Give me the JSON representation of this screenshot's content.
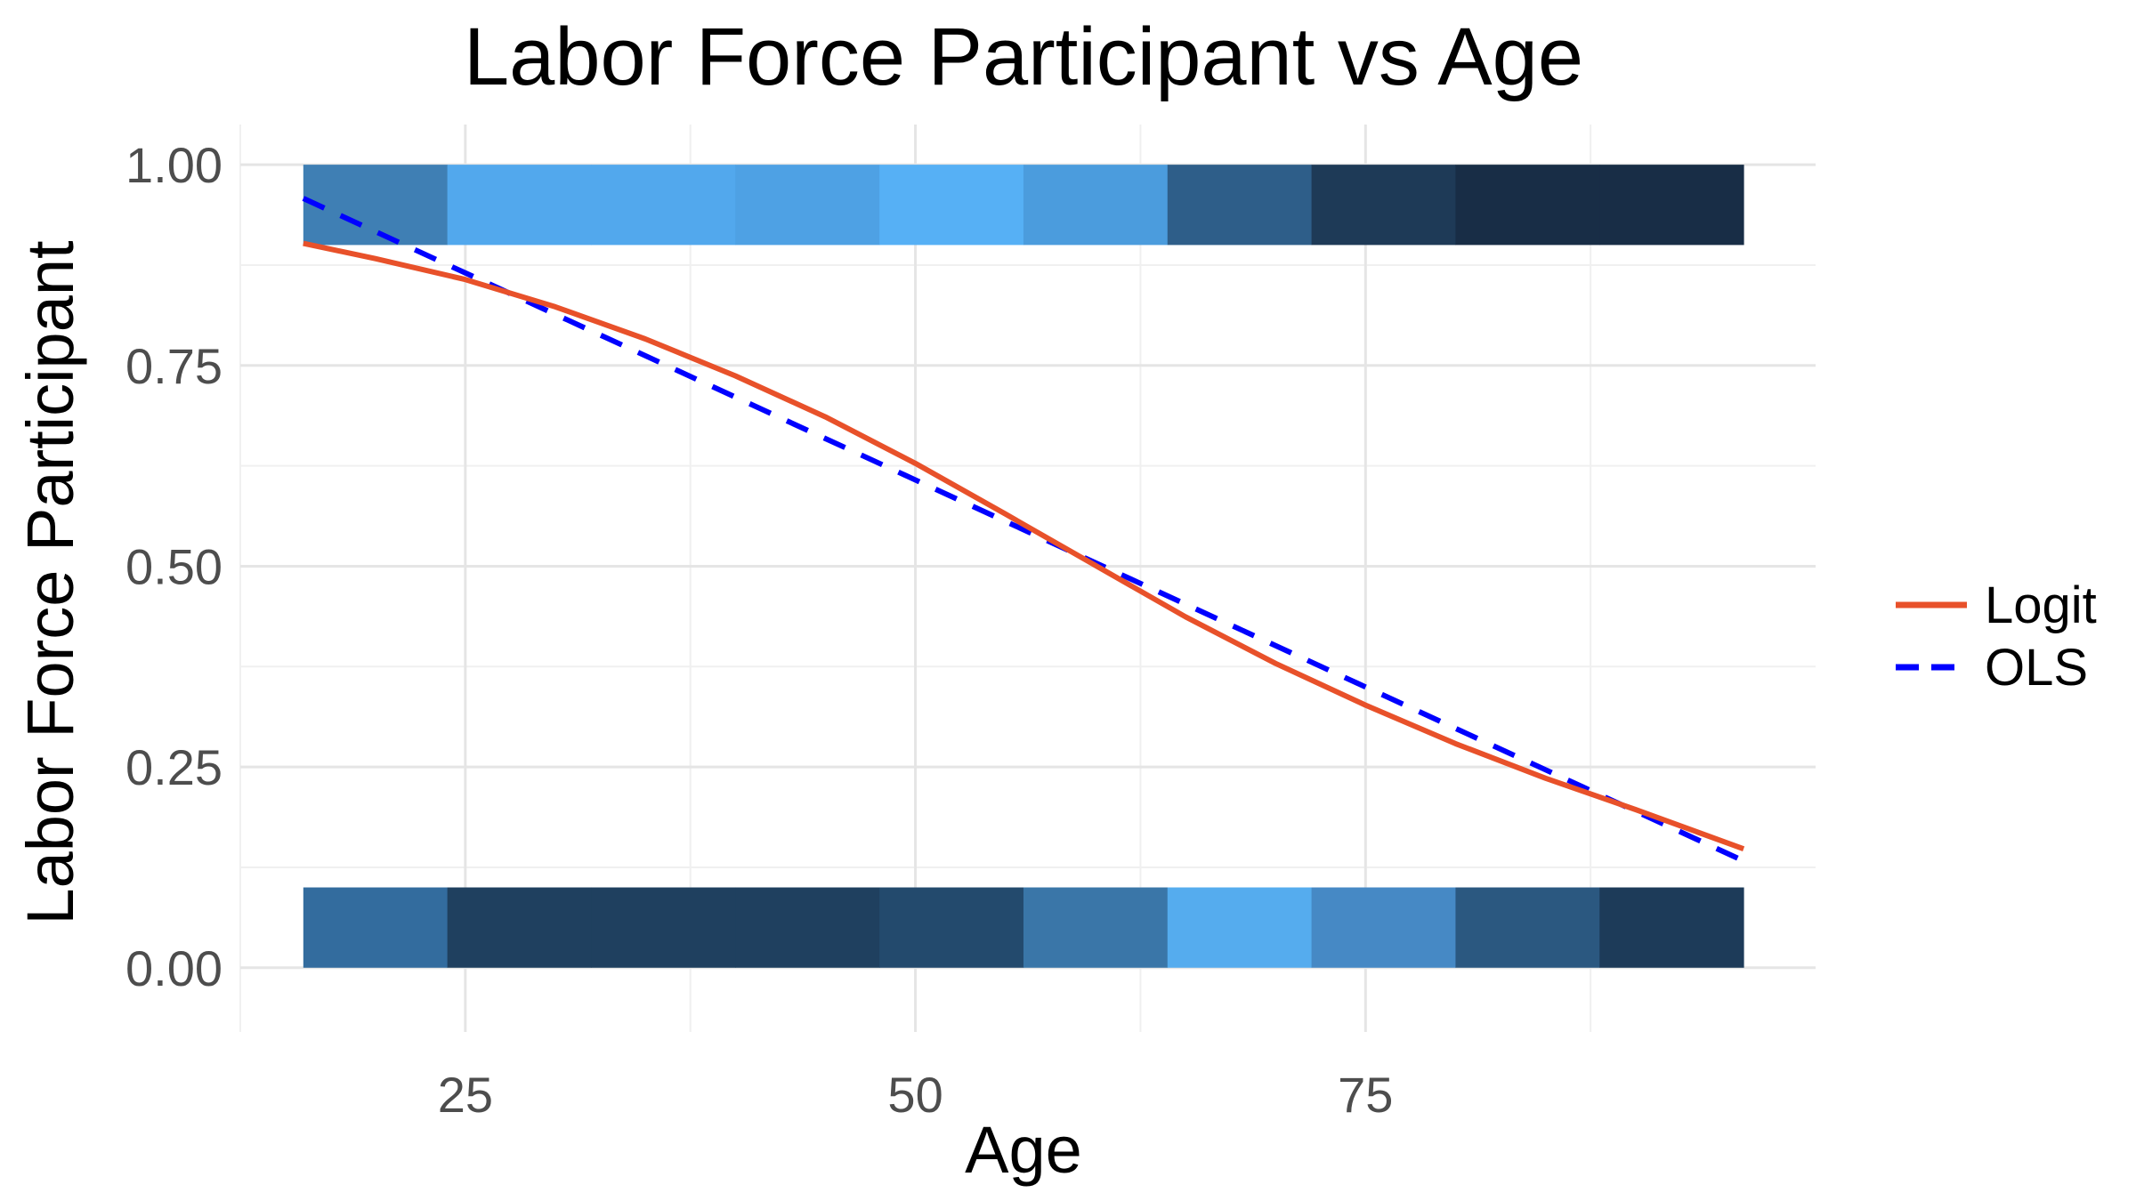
{
  "chart_data": {
    "type": "line",
    "title": "Labor Force Participant vs Age",
    "xlabel": "Age",
    "ylabel": "Labor Force Participant",
    "xlim": [
      12.5,
      100
    ],
    "ylim": [
      -0.08,
      1.05
    ],
    "x_ticks": [
      25,
      50,
      75
    ],
    "x_tick_labels": [
      "25",
      "50",
      "75"
    ],
    "y_ticks": [
      0,
      0.25,
      0.5,
      0.75,
      1.0
    ],
    "y_tick_labels": [
      "0.00",
      "0.25",
      "0.50",
      "0.75",
      "1.00"
    ],
    "grid": true,
    "legend": {
      "position": "right",
      "entries": [
        "Logit",
        "OLS"
      ]
    },
    "series": [
      {
        "name": "Logit",
        "color": "#e8512a",
        "style": "solid",
        "x": [
          16,
          20,
          25,
          30,
          35,
          40,
          45,
          50,
          55,
          60,
          65,
          70,
          75,
          80,
          85,
          90,
          96
        ],
        "y": [
          0.902,
          0.883,
          0.857,
          0.823,
          0.783,
          0.737,
          0.686,
          0.628,
          0.565,
          0.501,
          0.437,
          0.379,
          0.327,
          0.279,
          0.236,
          0.197,
          0.148
        ]
      },
      {
        "name": "OLS",
        "color": "#0000ff",
        "style": "dashed",
        "x": [
          16,
          96
        ],
        "y": [
          0.958,
          0.133
        ]
      }
    ],
    "rug_bands": [
      {
        "y": 1,
        "bins": [
          {
            "x0": 16,
            "x1": 24,
            "color": "#3f7fb4"
          },
          {
            "x0": 24,
            "x1": 32,
            "color": "#52a8ed"
          },
          {
            "x0": 32,
            "x1": 40,
            "color": "#52a8ed"
          },
          {
            "x0": 40,
            "x1": 48,
            "color": "#4ea1e4"
          },
          {
            "x0": 48,
            "x1": 56,
            "color": "#56b0f5"
          },
          {
            "x0": 56,
            "x1": 64,
            "color": "#4b9cdd"
          },
          {
            "x0": 64,
            "x1": 72,
            "color": "#2e5e89"
          },
          {
            "x0": 72,
            "x1": 80,
            "color": "#1e3a57"
          },
          {
            "x0": 80,
            "x1": 88,
            "color": "#182d46"
          },
          {
            "x0": 88,
            "x1": 96,
            "color": "#182d46"
          }
        ]
      },
      {
        "y": 0,
        "bins": [
          {
            "x0": 16,
            "x1": 24,
            "color": "#336c9e"
          },
          {
            "x0": 24,
            "x1": 32,
            "color": "#1f405f"
          },
          {
            "x0": 32,
            "x1": 40,
            "color": "#1f405f"
          },
          {
            "x0": 40,
            "x1": 48,
            "color": "#1f405f"
          },
          {
            "x0": 48,
            "x1": 56,
            "color": "#234a6d"
          },
          {
            "x0": 56,
            "x1": 64,
            "color": "#3a76a8"
          },
          {
            "x0": 64,
            "x1": 72,
            "color": "#55acee"
          },
          {
            "x0": 72,
            "x1": 80,
            "color": "#4689c5"
          },
          {
            "x0": 80,
            "x1": 88,
            "color": "#2b5880"
          },
          {
            "x0": 88,
            "x1": 96,
            "color": "#1d3b59"
          }
        ]
      }
    ]
  }
}
